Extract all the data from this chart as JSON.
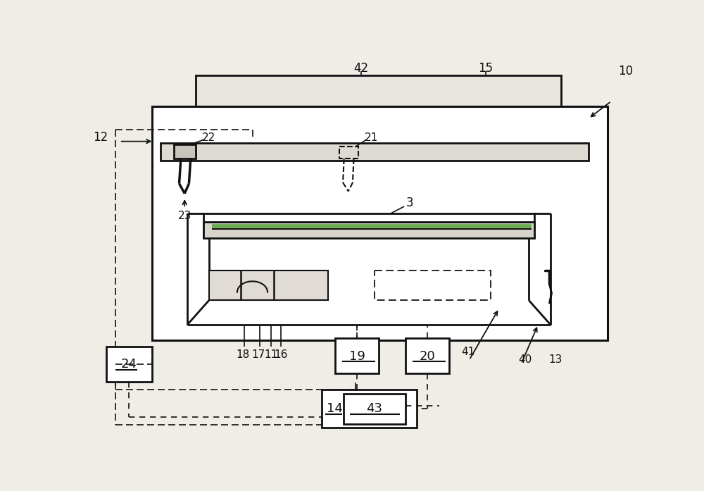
{
  "bg_color": "#f0ece6",
  "lc": "#111111",
  "fig_width": 10.0,
  "fig_height": 6.97,
  "dpi": 100
}
